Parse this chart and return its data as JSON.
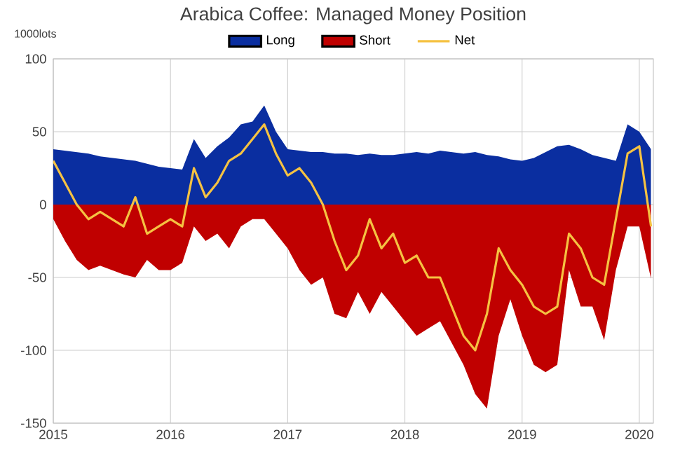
{
  "chart_data": {
    "type": "area",
    "title": "Arabica Coffee: Managed Money Position",
    "ylabel": "1000lots",
    "x": [
      2015.0,
      2015.1,
      2015.2,
      2015.3,
      2015.4,
      2015.5,
      2015.6,
      2015.7,
      2015.8,
      2015.9,
      2016.0,
      2016.1,
      2016.2,
      2016.3,
      2016.4,
      2016.5,
      2016.6,
      2016.7,
      2016.8,
      2016.9,
      2017.0,
      2017.1,
      2017.2,
      2017.3,
      2017.4,
      2017.5,
      2017.6,
      2017.7,
      2017.8,
      2017.9,
      2018.0,
      2018.1,
      2018.2,
      2018.3,
      2018.4,
      2018.5,
      2018.6,
      2018.7,
      2018.8,
      2018.9,
      2019.0,
      2019.1,
      2019.2,
      2019.3,
      2019.4,
      2019.5,
      2019.6,
      2019.7,
      2019.8,
      2019.9,
      2020.0,
      2020.1
    ],
    "series": [
      {
        "name": "Long",
        "color": "#0a2ea0",
        "values": [
          38,
          37,
          36,
          35,
          33,
          32,
          31,
          30,
          28,
          26,
          25,
          24,
          45,
          32,
          40,
          46,
          55,
          57,
          68,
          50,
          38,
          37,
          36,
          36,
          35,
          35,
          34,
          35,
          34,
          34,
          35,
          36,
          35,
          37,
          36,
          35,
          36,
          34,
          33,
          31,
          30,
          32,
          36,
          40,
          41,
          38,
          34,
          32,
          30,
          55,
          50,
          38
        ]
      },
      {
        "name": "Short",
        "color": "#c00000",
        "values": [
          -10,
          -25,
          -38,
          -45,
          -42,
          -45,
          -48,
          -50,
          -38,
          -45,
          -45,
          -40,
          -15,
          -25,
          -20,
          -30,
          -15,
          -10,
          -10,
          -20,
          -30,
          -45,
          -55,
          -50,
          -75,
          -78,
          -60,
          -75,
          -60,
          -70,
          -80,
          -90,
          -85,
          -80,
          -95,
          -110,
          -130,
          -140,
          -90,
          -65,
          -90,
          -110,
          -115,
          -110,
          -45,
          -70,
          -70,
          -93,
          -45,
          -15,
          -15,
          -51
        ]
      },
      {
        "name": "Net",
        "type": "line",
        "color": "#f5c242",
        "values": [
          30,
          15,
          0,
          -10,
          -5,
          -10,
          -15,
          5,
          -20,
          -15,
          -10,
          -15,
          25,
          5,
          15,
          30,
          35,
          45,
          55,
          35,
          20,
          25,
          15,
          0,
          -25,
          -45,
          -35,
          -10,
          -30,
          -20,
          -40,
          -35,
          -50,
          -50,
          -70,
          -90,
          -100,
          -75,
          -30,
          -45,
          -55,
          -70,
          -75,
          -70,
          -20,
          -30,
          -50,
          -55,
          -10,
          35,
          40,
          -15
        ]
      }
    ],
    "xlim": [
      2015,
      2020.12
    ],
    "xticks": [
      2015,
      2016,
      2017,
      2018,
      2019,
      2020
    ],
    "ylim": [
      -150,
      100
    ],
    "yticks": [
      -150,
      -100,
      -50,
      0,
      50,
      100
    ],
    "grid": true,
    "legend": "top"
  }
}
